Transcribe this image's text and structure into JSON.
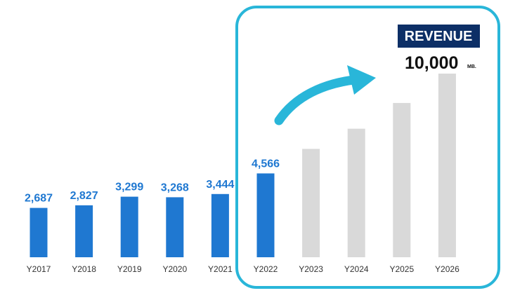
{
  "chart_data": {
    "type": "bar",
    "title": "REVENUE",
    "categories": [
      "Y2017",
      "Y2018",
      "Y2019",
      "Y2020",
      "Y2021",
      "Y2022",
      "Y2023",
      "Y2024",
      "Y2025",
      "Y2026"
    ],
    "values": [
      2687,
      2827,
      3299,
      3268,
      3444,
      4566,
      5900,
      7000,
      8400,
      10000
    ],
    "value_labels": [
      "2,687",
      "2,827",
      "3,299",
      "3,268",
      "3,444",
      "4,566",
      "",
      "",
      "",
      ""
    ],
    "actual_count": 6,
    "highlight": {
      "value": "10,000",
      "unit": "MB."
    },
    "ylim": [
      0,
      10000
    ],
    "xlabel": "",
    "ylabel": "",
    "grid": false,
    "legend": "none"
  },
  "colors": {
    "actual_bar": "#1f78d1",
    "projected_bar": "#d9d9d9",
    "value_label": "#1f78d1",
    "frame": "#29b6d9",
    "arrow": "#29b6d9",
    "title_bg": "#0d2f66",
    "title_text": "#ffffff"
  },
  "icons": {
    "arrow": "curved-arrow-icon"
  }
}
